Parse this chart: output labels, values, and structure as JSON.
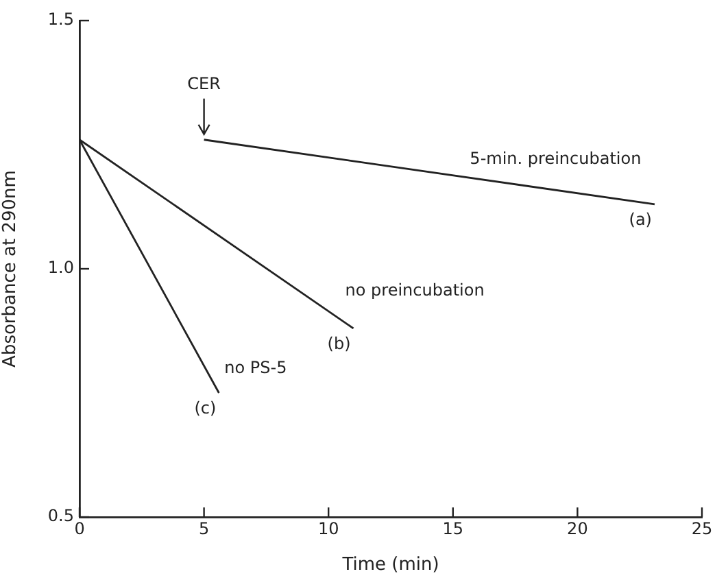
{
  "chart_data": {
    "type": "line",
    "xlabel": "Time (min)",
    "ylabel": "Absorbance at 290nm",
    "xlim": [
      0,
      25
    ],
    "xticks": [
      0,
      5,
      10,
      15,
      20,
      25
    ],
    "ylim": [
      0.5,
      1.5
    ],
    "yticks": [
      {
        "value": 0.5,
        "label": "0.5"
      },
      {
        "value": 1,
        "label": "1.0"
      },
      {
        "value": 1.5,
        "label": "1.5"
      }
    ],
    "grid": false,
    "legend": false,
    "marker": "none",
    "line_style": "solid",
    "series": [
      {
        "name": "5-min. preincubation",
        "color": "#222222",
        "x": [
          5,
          23.1
        ],
        "values": [
          1.26,
          1.13
        ]
      },
      {
        "name": "no preincubation",
        "color": "#222222",
        "x": [
          0,
          11
        ],
        "values": [
          1.26,
          0.88
        ]
      },
      {
        "name": "no PS-5",
        "color": "#222222",
        "x": [
          0,
          5.6
        ],
        "values": [
          1.26,
          0.75
        ]
      }
    ],
    "annotations": [
      {
        "text": "CER",
        "x": 5,
        "y": 1.26
      },
      {
        "text": "(a)",
        "x": 23.1,
        "y": 1.13
      },
      {
        "text": "(b)",
        "x": 11,
        "y": 0.88
      },
      {
        "text": "(c)",
        "x": 5.6,
        "y": 0.75
      }
    ]
  }
}
